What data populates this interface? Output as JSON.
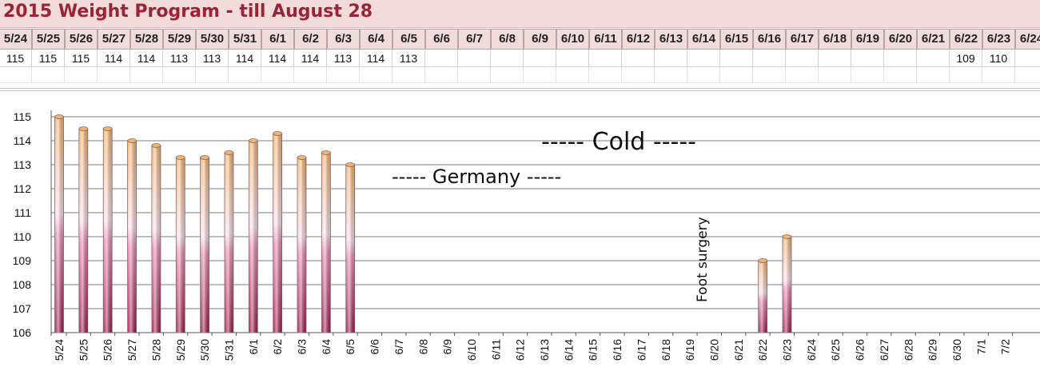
{
  "title": "2015 Weight Program - till August 28",
  "table": {
    "dates": [
      "5/24",
      "5/25",
      "5/26",
      "5/27",
      "5/28",
      "5/29",
      "5/30",
      "5/31",
      "6/1",
      "6/2",
      "6/3",
      "6/4",
      "6/5",
      "6/6",
      "6/7",
      "6/8",
      "6/9",
      "6/10",
      "6/11",
      "6/12",
      "6/13",
      "6/14",
      "6/15",
      "6/16",
      "6/17",
      "6/18",
      "6/19",
      "6/20",
      "6/21",
      "6/22",
      "6/23",
      "6/24"
    ],
    "weights": [
      "115",
      "115",
      "115",
      "114",
      "114",
      "113",
      "113",
      "114",
      "114",
      "114",
      "113",
      "114",
      "113",
      "",
      "",
      "",
      "",
      "",
      "",
      "",
      "",
      "",
      "",
      "",
      "",
      "",
      "",
      "",
      "",
      "109",
      "110",
      ""
    ]
  },
  "chart_data": {
    "type": "bar",
    "categories": [
      "5/24",
      "5/25",
      "5/26",
      "5/27",
      "5/28",
      "5/29",
      "5/30",
      "5/31",
      "6/1",
      "6/2",
      "6/3",
      "6/4",
      "6/5",
      "6/6",
      "6/7",
      "6/8",
      "6/9",
      "6/10",
      "6/11",
      "6/12",
      "6/13",
      "6/14",
      "6/15",
      "6/16",
      "6/17",
      "6/18",
      "6/19",
      "6/20",
      "6/21",
      "6/22",
      "6/23",
      "6/24",
      "6/25",
      "6/26",
      "6/27",
      "6/28",
      "6/29",
      "6/30",
      "7/1",
      "7/2"
    ],
    "values": [
      115,
      114.5,
      114.5,
      114,
      113.8,
      113.3,
      113.3,
      113.5,
      114,
      114.3,
      113.3,
      113.5,
      113,
      null,
      null,
      null,
      null,
      null,
      null,
      null,
      null,
      null,
      null,
      null,
      null,
      null,
      null,
      null,
      null,
      109,
      110,
      null,
      null,
      null,
      null,
      null,
      null,
      null,
      null,
      null
    ],
    "yticks": [
      106,
      107,
      108,
      109,
      110,
      111,
      112,
      113,
      114,
      115
    ],
    "ylim": [
      106,
      115.5
    ],
    "grid": true,
    "annotations": [
      {
        "text": "----- Cold -----"
      },
      {
        "text": "----- Germany -----"
      },
      {
        "text": "Foot surgery"
      }
    ]
  },
  "colors": {
    "title": "#9b2335",
    "header_fill": "#f2dcdb",
    "bar_top": "#f6b26b",
    "bar_mid": "#fbe0ec",
    "bar_bottom": "#a0184a",
    "gridline": "#7f7f7f"
  }
}
